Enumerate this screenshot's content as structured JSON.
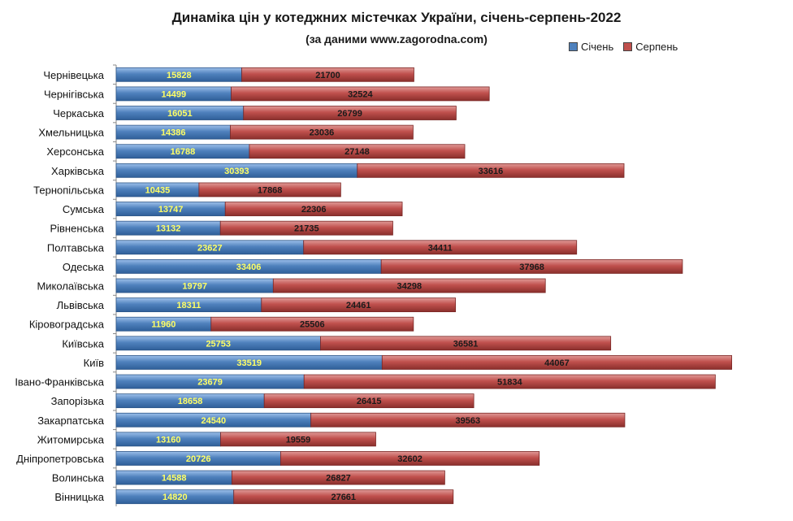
{
  "chart_data": {
    "type": "bar",
    "orientation": "horizontal",
    "stacked": true,
    "title": "Динаміка цін у котеджних містечках України, січень-серпень-2022",
    "subtitle": "(за даними www.zagorodna.com)",
    "legend_position": "top-right",
    "categories": [
      "Чернівецька",
      "Чернігівська",
      "Черкаська",
      "Хмельницька",
      "Херсонська",
      "Харківська",
      "Тернопільська",
      "Сумська",
      "Рівненська",
      "Полтавська",
      "Одеська",
      "Миколаївська",
      "Львівська",
      "Кіровоградська",
      "Київська",
      "Київ",
      "Івано-Франківська",
      "Запорізька",
      "Закарпатська",
      "Житомирська",
      "Дніпропетровська",
      "Волинська",
      "Вінницька"
    ],
    "series": [
      {
        "name": "Січень",
        "color": "#4f81bd",
        "label_color": "#ffff66",
        "values": [
          15828,
          14499,
          16051,
          14386,
          16788,
          30393,
          10435,
          13747,
          13132,
          23627,
          33406,
          19797,
          18311,
          11960,
          25753,
          33519,
          23679,
          18658,
          24540,
          13160,
          20726,
          14588,
          14820
        ]
      },
      {
        "name": "Серпень",
        "color": "#c0504d",
        "label_color": "#1a1a1a",
        "values": [
          21700,
          32524,
          26799,
          23036,
          27148,
          33616,
          17868,
          22306,
          21735,
          34411,
          37968,
          34298,
          24461,
          25506,
          36581,
          44067,
          51834,
          26415,
          39563,
          19559,
          32602,
          26827,
          27661
        ]
      }
    ],
    "xlim": [
      0,
      85000
    ],
    "grid": false
  }
}
